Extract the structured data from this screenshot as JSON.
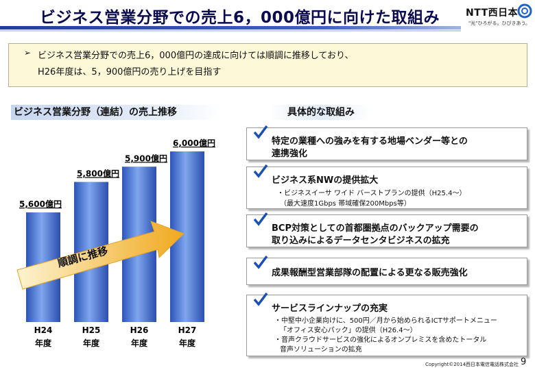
{
  "header": {
    "title": "ビジネス営業分野での売上6，000億円に向けた取組み",
    "logo_text": "NTT西日本",
    "logo_tagline": "\"光\"ひろがる。ひびきあう。",
    "brand_color": "#1e3f96"
  },
  "summary": {
    "marker": "➢",
    "line1": "ビジネス営業分野での売上6，000億円の達成に向けては順調に推移しており、",
    "line2": "H26年度は、5，900億円の売り上げを目指す",
    "background": "#fdf8d8"
  },
  "chart_section": {
    "heading": "ビジネス営業分野（連結）の売上推移"
  },
  "chart_data": {
    "type": "bar",
    "categories": [
      "H24",
      "H25",
      "H26",
      "H27"
    ],
    "category_sublabel": "年度",
    "values": [
      5600,
      5800,
      5900,
      6000
    ],
    "value_labels": [
      "5,600億円",
      "5,800億円",
      "5,900億円",
      "6,000億円"
    ],
    "unit": "億円",
    "ylim": [
      5000,
      6100
    ],
    "annotation": "順調に推移",
    "bar_color": "#3d6cd1",
    "arrow_color": "#f2b632"
  },
  "initiatives": {
    "heading": "具体的な取組み",
    "check_icon": "check-icon",
    "items": [
      {
        "title": "特定の業種への強みを有する地場ベンダー等との",
        "title2": "連携強化"
      },
      {
        "title": "ビジネス系NWの提供拡大",
        "sub1": "・ビジネスイーサ ワイド バーストプランの提供（H25.4～）",
        "sub2": "（最大速度1Gbps 帯域確保200Mbps等）"
      },
      {
        "title": "BCP対策としての首都圏拠点のバックアップ需要の",
        "title2": "取り込みによるデータセンタビジネスの拡充"
      },
      {
        "title": "成果報酬型営業部隊の配置による更なる販売強化"
      },
      {
        "title": "サービスラインナップの充実",
        "sub1": "・中堅中小企業向けに、500円／月から始められるICTサポートメニュー",
        "sub2": "「オフィス安心パック」の提供（H26.4～）",
        "sub3": "・音声クラウドサービスの強化によるオンプレミスを含めたトータル",
        "sub4": "音声ソリューションの拡充"
      }
    ],
    "check_color": "#1a4fb5"
  },
  "footer": {
    "copyright": "Copyright©2014西日本電信電話株式会社",
    "page_number": "9"
  }
}
